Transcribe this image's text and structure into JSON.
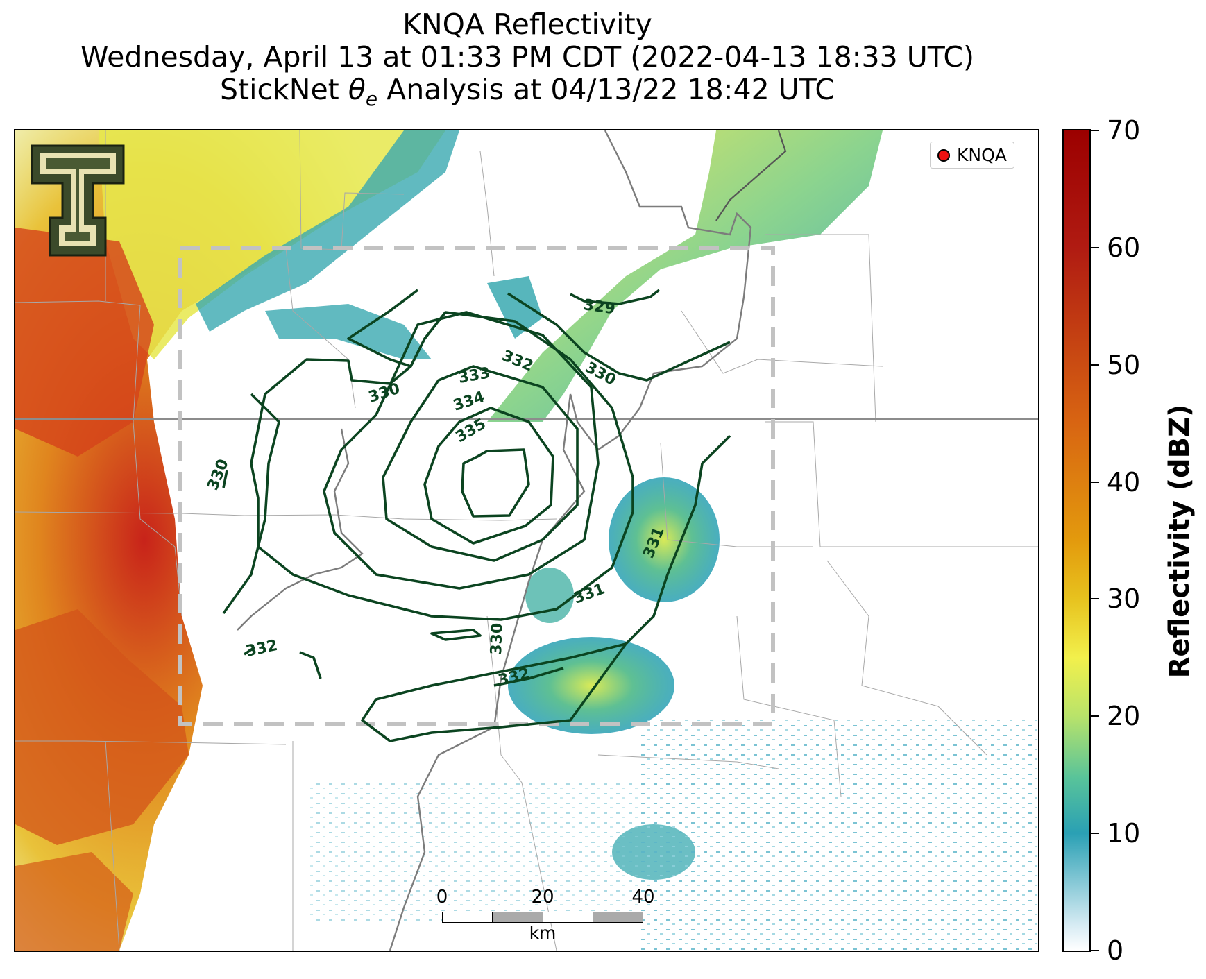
{
  "title": {
    "line1": "KNQA Reflectivity",
    "line2": "Wednesday, April 13 at 01:33 PM CDT (2022-04-13 18:33 UTC)",
    "line3_prefix": "StickNet ",
    "line3_symbol": "θ",
    "line3_subscript": "e",
    "line3_suffix": " Analysis at 04/13/22 18:42 UTC"
  },
  "legend": {
    "label": "KNQA"
  },
  "contour_labels": [
    "329",
    "330",
    "332",
    "333",
    "334",
    "335",
    "330",
    "330",
    "331",
    "331",
    "330",
    "332",
    "332"
  ],
  "scalebar": {
    "ticks": [
      "0",
      "20",
      "40"
    ],
    "unit": "km"
  },
  "colorbar": {
    "title": "Reflectivity (dBZ)",
    "ticks": [
      "0",
      "10",
      "20",
      "30",
      "40",
      "50",
      "60",
      "70"
    ],
    "min": 0,
    "max": 70
  },
  "colors": {
    "contour": "#0b4420",
    "boundary": "#888888",
    "domain_box": "#bbbbbb",
    "radar_dot": "#ee1111",
    "logo": "#3b4a2a"
  }
}
